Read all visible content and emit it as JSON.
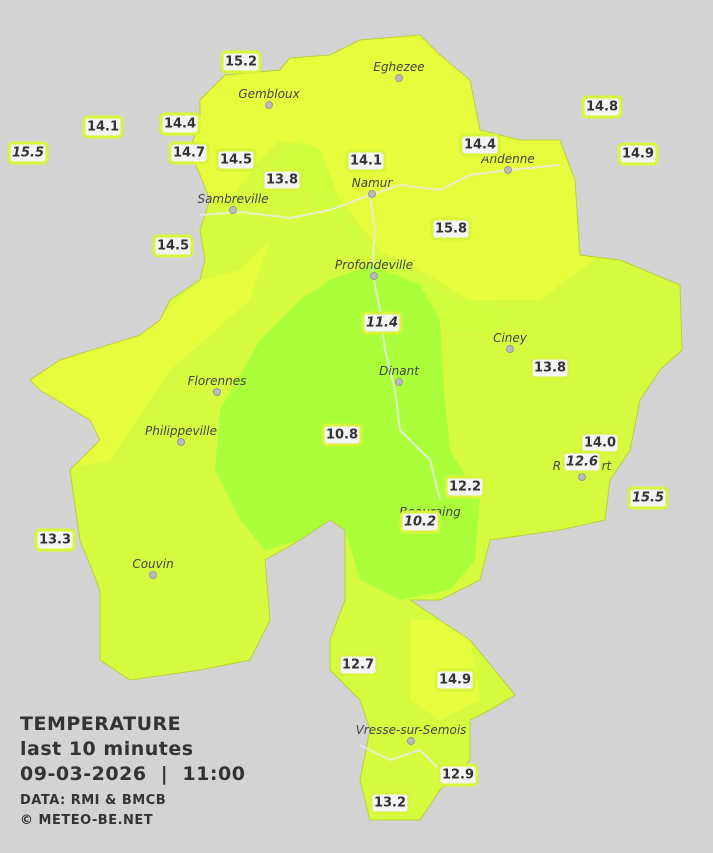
{
  "title": {
    "lines": [
      "TEMPERATURE",
      "last 10 minutes",
      "09-03-2026  |  11:00"
    ],
    "credits": [
      "DATA: RMI & BMCB",
      "© METEO-BE.NET"
    ]
  },
  "towns": [
    "Eghezee",
    "Gembloux",
    "Andenne",
    "Namur",
    "Sambreville",
    "Profondeville",
    "Ciney",
    "Florennes",
    "Dinant",
    "Philippeville",
    "Rochefort",
    "Beauraing",
    "Couvin",
    "Vresse-sur-Semois"
  ],
  "stations": [
    "15.2",
    "14.1",
    "14.4",
    "15.5",
    "14.7",
    "14.5",
    "13.8",
    "14.1",
    "14.4",
    "14.8",
    "14.9",
    "14.5",
    "15.8",
    "11.4",
    "13.8",
    "10.8",
    "14.0",
    "12.6",
    "12.2",
    "15.5",
    "10.2",
    "13.3",
    "12.7",
    "14.9",
    "12.9",
    "13.2"
  ]
}
